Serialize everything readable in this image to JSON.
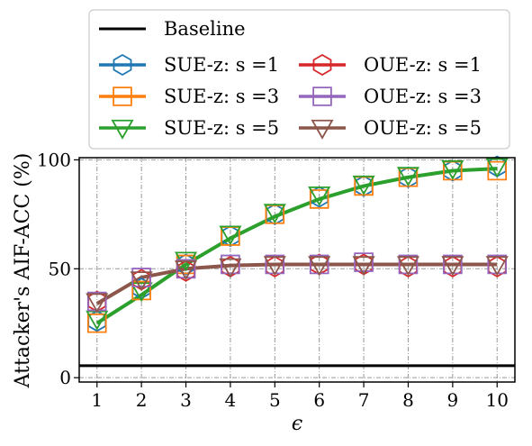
{
  "chart_data": {
    "type": "line",
    "xlabel": "ϵ",
    "ylabel": "Attacker's AIF-ACC (%)",
    "x": [
      1,
      2,
      3,
      4,
      5,
      6,
      7,
      8,
      9,
      10
    ],
    "xticks": [
      "1",
      "2",
      "3",
      "4",
      "5",
      "6",
      "7",
      "8",
      "9",
      "10"
    ],
    "yticks": [
      "0",
      "50",
      "100"
    ],
    "xlim": [
      0.6,
      10.4
    ],
    "ylim": [
      -2,
      101
    ],
    "grid": true,
    "legend_position": "top",
    "baseline": {
      "name": "Baseline",
      "value": 5.5,
      "color": "#000000"
    },
    "series": [
      {
        "name": "SUE-z: s =1",
        "color": "#1f77b4",
        "marker": "hexagon",
        "values": [
          26,
          41,
          52,
          65,
          75,
          83,
          88,
          92,
          95,
          97
        ]
      },
      {
        "name": "SUE-z: s =3",
        "color": "#ff7f0e",
        "marker": "square",
        "values": [
          25,
          40,
          52,
          65,
          75,
          82,
          88,
          92,
          95,
          95
        ]
      },
      {
        "name": "SUE-z: s =5",
        "color": "#2ca02c",
        "marker": "triangle-down",
        "values": [
          27,
          40,
          54,
          66,
          76,
          84,
          89,
          93,
          96,
          97
        ]
      },
      {
        "name": "OUE-z: s =1",
        "color": "#d62728",
        "marker": "hexagon",
        "values": [
          35,
          45,
          49,
          51,
          51,
          52,
          52,
          51,
          51,
          51
        ]
      },
      {
        "name": "OUE-z: s =3",
        "color": "#9467bd",
        "marker": "square",
        "values": [
          35,
          46,
          50,
          52,
          52,
          52,
          53,
          52,
          52,
          52
        ]
      },
      {
        "name": "OUE-z: s =5",
        "color": "#8c564b",
        "marker": "triangle-down",
        "values": [
          35,
          45,
          50,
          51,
          52,
          52,
          52,
          52,
          52,
          52
        ]
      }
    ],
    "trend_lines": [
      {
        "color": "#2ca02c",
        "values": [
          25,
          38,
          52,
          64,
          74,
          82,
          88,
          92,
          95,
          96
        ]
      },
      {
        "color": "#8c564b",
        "values": [
          34,
          46,
          50,
          51.5,
          52,
          52,
          52,
          52,
          52,
          52
        ]
      }
    ]
  }
}
